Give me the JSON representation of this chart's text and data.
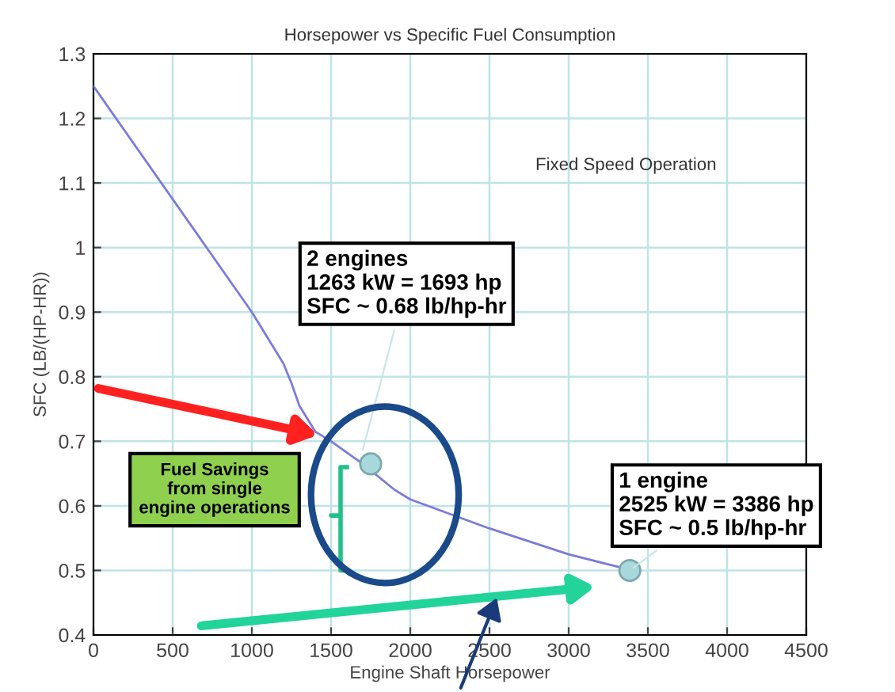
{
  "chart_data": {
    "type": "line",
    "title": "Horsepower vs Specific Fuel Consumption",
    "xlabel": "Engine Shaft Horsepower",
    "ylabel": "SFC (LB/(HP-HR))",
    "xlim": [
      0,
      4500
    ],
    "xticks": [
      0,
      500,
      1000,
      1500,
      2000,
      2500,
      3000,
      3500,
      4000,
      4500
    ],
    "ylim": [
      0.4,
      1.3
    ],
    "yticks": [
      0.4,
      0.5,
      0.6,
      0.7,
      0.8,
      0.9,
      1,
      1.1,
      1.2,
      1.3
    ],
    "grid": true,
    "series": [
      {
        "color": "#7b7bdc",
        "x": [
          0,
          1000,
          1100,
          1200,
          1250,
          1300,
          1400,
          1500,
          1700,
          1900,
          2000,
          2500,
          3000,
          3320
        ],
        "values": [
          1.25,
          0.9,
          0.86,
          0.82,
          0.79,
          0.755,
          0.715,
          0.7,
          0.665,
          0.625,
          0.61,
          0.565,
          0.525,
          0.505
        ]
      },
      {
        "type": "scatter",
        "color": "#a9d8dc",
        "marker": "circle",
        "x": [
          1750,
          3386
        ],
        "values": [
          0.665,
          0.5
        ]
      }
    ],
    "annotations": [
      "Fixed Speed Operation",
      {
        "text": "2 engines\n1263 kW = 1693 hp\nSFC ~ 0.68 lb/hp-hr",
        "x": 1693,
        "y": 0.68
      },
      {
        "text": "1 engine\n2525 kW = 3386 hp\nSFC ~ 0.5 lb/hp-hr",
        "x": 3386,
        "y": 0.5
      },
      "Fuel Savings\nfrom single\nengine operations"
    ]
  }
}
